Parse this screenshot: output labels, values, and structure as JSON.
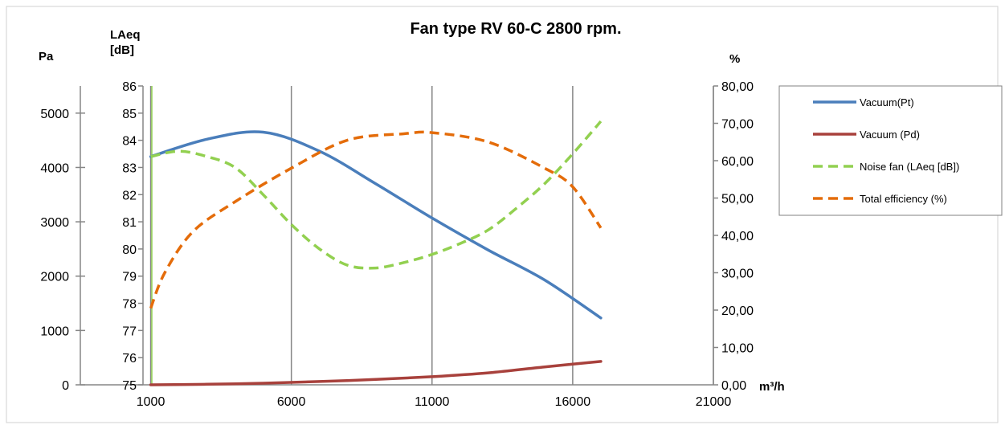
{
  "chart_data": {
    "type": "line",
    "title": "Fan type RV 60-C 2800 rpm.",
    "x_unit_label": "m³/h",
    "xlim": [
      -1500,
      21000
    ],
    "x_ticks": [
      "1000",
      "6000",
      "11000",
      "16000",
      "21000"
    ],
    "x_tick_values": [
      1000,
      6000,
      11000,
      16000,
      21000
    ],
    "y_pa": {
      "unit_label": "Pa",
      "range": [
        0,
        5500
      ],
      "ticks": [
        "0",
        "1000",
        "2000",
        "3000",
        "4000",
        "5000"
      ],
      "tick_values": [
        0,
        1000,
        2000,
        3000,
        4000,
        5000
      ]
    },
    "y_db": {
      "unit_label_line1": "LAeq",
      "unit_label_line2": "[dB]",
      "range": [
        75,
        86
      ],
      "ticks": [
        "75",
        "76",
        "77",
        "78",
        "79",
        "80",
        "81",
        "82",
        "83",
        "84",
        "85",
        "86"
      ],
      "tick_values": [
        75,
        76,
        77,
        78,
        79,
        80,
        81,
        82,
        83,
        84,
        85,
        86
      ]
    },
    "y_pct": {
      "unit_label": "%",
      "range": [
        0,
        80
      ],
      "ticks": [
        "0,00",
        "10,00",
        "20,00",
        "30,00",
        "40,00",
        "50,00",
        "60,00",
        "70,00",
        "80,00"
      ],
      "tick_values": [
        0,
        10,
        20,
        30,
        40,
        50,
        60,
        70,
        80
      ]
    },
    "grid": "vertical",
    "legend_position": "right",
    "series": [
      {
        "name": "Vacuum(Pt)",
        "axis": "pa",
        "color": "#4A7EBB",
        "dash": "solid",
        "x": [
          1000,
          3000,
          5000,
          7000,
          9000,
          11000,
          13000,
          15000,
          17000
        ],
        "y": [
          4200,
          4520,
          4650,
          4300,
          3700,
          3070,
          2480,
          1930,
          1230
        ]
      },
      {
        "name": "Vacuum (Pd)",
        "axis": "pa",
        "color": "#A8413C",
        "dash": "solid",
        "x": [
          1000,
          3000,
          5000,
          7000,
          9000,
          11000,
          13000,
          15000,
          17000
        ],
        "y": [
          0,
          10,
          30,
          60,
          100,
          150,
          220,
          330,
          430
        ]
      },
      {
        "name": "Noise fan (LAeq [dB])",
        "axis": "db",
        "color": "#92D050",
        "dash": "dashed",
        "x": [
          1000,
          2000,
          3000,
          4000,
          5000,
          6000,
          7000,
          8000,
          9000,
          10000,
          11000,
          12000,
          13000,
          14000,
          15000,
          16000,
          17000
        ],
        "y": [
          83.4,
          83.6,
          83.4,
          83.0,
          82.0,
          80.9,
          80.0,
          79.4,
          79.3,
          79.5,
          79.8,
          80.2,
          80.7,
          81.5,
          82.4,
          83.5,
          84.7
        ]
      },
      {
        "name": "Total efficiency (%)",
        "axis": "pct",
        "color": "#E46C0A",
        "dash": "dashed",
        "x": [
          1000,
          1500,
          2500,
          4000,
          6000,
          8000,
          10000,
          11000,
          13000,
          15000,
          16000,
          17000
        ],
        "y": [
          20.5,
          30,
          41,
          49,
          58,
          65.5,
          67.2,
          67.5,
          65,
          58,
          53,
          42
        ]
      }
    ]
  }
}
